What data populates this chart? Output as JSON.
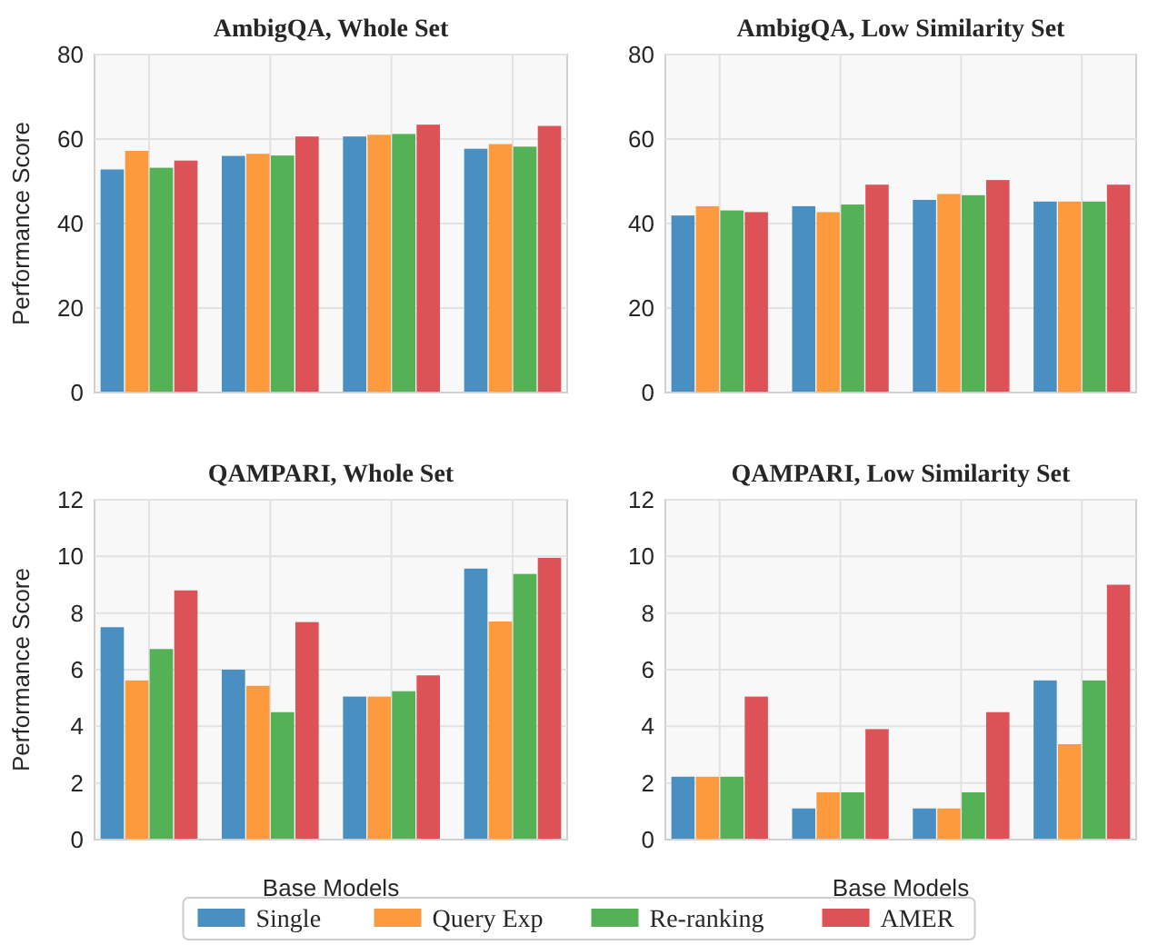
{
  "chart_data": [
    {
      "type": "bar",
      "title": "AmbigQA, Whole Set",
      "ylabel": "Performance Score",
      "categories": [
        null,
        null,
        null,
        null
      ],
      "ylim": [
        0,
        80
      ],
      "yticks": [
        0,
        20,
        40,
        60,
        80
      ],
      "grid": true,
      "legend": "bottom",
      "series": [
        {
          "name": "Single",
          "color": "#4a8fc1",
          "values": [
            52.8,
            56,
            60.6,
            57.7
          ]
        },
        {
          "name": "Query Exp",
          "color": "#fe9a3e",
          "values": [
            57.2,
            56.5,
            61,
            58.8
          ]
        },
        {
          "name": "Re-ranking",
          "color": "#55b155",
          "values": [
            53.2,
            56.1,
            61.2,
            58.2
          ]
        },
        {
          "name": "AMER",
          "color": "#dd5257",
          "values": [
            54.9,
            60.6,
            63.4,
            63.1
          ]
        }
      ]
    },
    {
      "type": "bar",
      "title": "AmbigQA, Low Similarity Set",
      "categories": [
        null,
        null,
        null,
        null
      ],
      "ylim": [
        0,
        80
      ],
      "yticks": [
        0,
        20,
        40,
        60,
        80
      ],
      "grid": true,
      "series": [
        {
          "color": "#4a8fc1",
          "values": [
            41.9,
            44.1,
            45.6,
            45.2
          ]
        },
        {
          "color": "#fe9a3e",
          "values": [
            44.1,
            42.7,
            47,
            45.2
          ]
        },
        {
          "color": "#55b155",
          "values": [
            43.1,
            44.5,
            46.7,
            45.2
          ]
        },
        {
          "color": "#dd5257",
          "values": [
            42.7,
            49.2,
            50.3,
            49.2
          ]
        }
      ]
    },
    {
      "type": "bar",
      "title": "QAMPARI, Whole Set",
      "xlabel": "Base Models",
      "ylabel": "Performance Score",
      "categories": [
        null,
        null,
        null,
        null
      ],
      "ylim": [
        0,
        12
      ],
      "yticks": [
        0,
        2,
        4,
        6,
        8,
        10,
        12
      ],
      "grid": true,
      "series": [
        {
          "color": "#4a8fc1",
          "values": [
            7.5,
            6.0,
            5.05,
            9.57
          ]
        },
        {
          "color": "#fe9a3e",
          "values": [
            5.62,
            5.43,
            5.05,
            7.7
          ]
        },
        {
          "color": "#55b155",
          "values": [
            6.73,
            4.5,
            5.24,
            9.38
          ]
        },
        {
          "color": "#dd5257",
          "values": [
            8.8,
            7.68,
            5.8,
            9.95
          ]
        }
      ]
    },
    {
      "type": "bar",
      "title": "QAMPARI, Low Similarity Set",
      "xlabel": "Base Models",
      "categories": [
        null,
        null,
        null,
        null
      ],
      "ylim": [
        0,
        12
      ],
      "yticks": [
        0,
        2,
        4,
        6,
        8,
        10,
        12
      ],
      "grid": true,
      "series": [
        {
          "color": "#4a8fc1",
          "values": [
            2.22,
            1.1,
            1.1,
            5.62
          ]
        },
        {
          "color": "#fe9a3e",
          "values": [
            2.22,
            1.67,
            1.1,
            3.37
          ]
        },
        {
          "color": "#55b155",
          "values": [
            2.22,
            1.67,
            1.67,
            5.62
          ]
        },
        {
          "color": "#dd5257",
          "values": [
            5.05,
            3.9,
            4.5,
            9.0
          ]
        }
      ]
    }
  ]
}
